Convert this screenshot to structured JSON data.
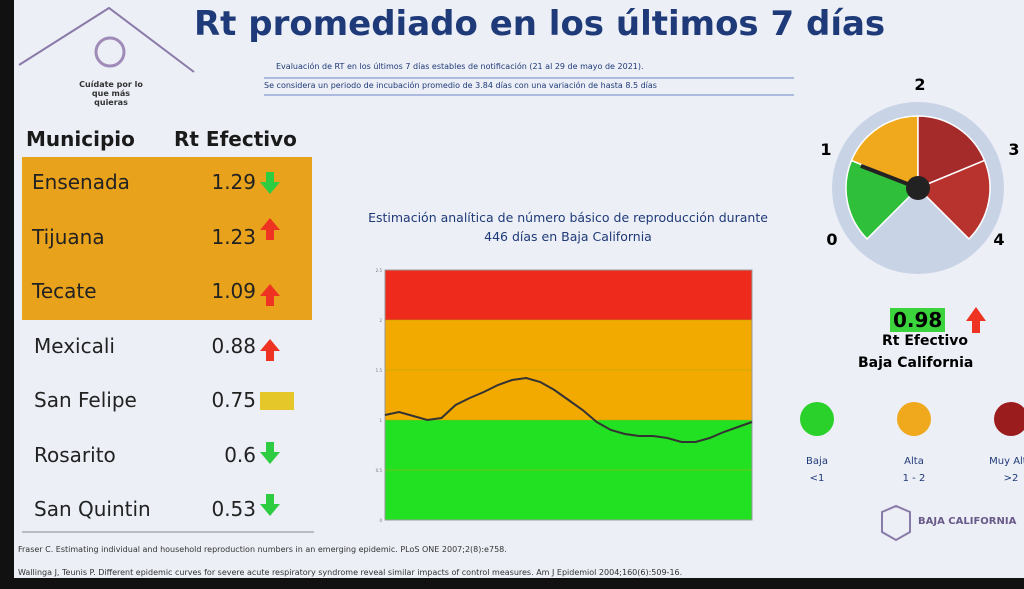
{
  "header": {
    "title": "Rt promediado en los últimos 7 días",
    "subtitle_1": "Evaluación de RT en los últimos 7 días estables de notificación (21 al 29 de mayo de 2021).",
    "subtitle_2": "Se considera un periodo de incubación promedio de 3.84 días con una variación de hasta 8.5 días",
    "logo_text": "Cuídate por lo que más quieras"
  },
  "table": {
    "columns": [
      "Municipio",
      "Rt Efectivo"
    ],
    "rows": [
      [
        "Ensenada",
        "1.29"
      ],
      [
        "Tijuana",
        "1.23"
      ],
      [
        "Tecate",
        "1.09"
      ],
      [
        "Mexicali",
        "0.88"
      ],
      [
        "San Felipe",
        "0.75"
      ],
      [
        "Rosarito",
        "0.6"
      ],
      [
        "San Quintin",
        "0.53"
      ]
    ]
  },
  "chart_data": {
    "type": "line",
    "title": "Estimación analítica de número básico de reproducción durante 446 días en Baja California",
    "ylim": [
      0,
      2.5
    ],
    "yticks": [
      0,
      0.5,
      1,
      1.5,
      2,
      2.5
    ],
    "bands": [
      {
        "from": 0,
        "to": 1,
        "color": "#22e022"
      },
      {
        "from": 1,
        "to": 2,
        "color": "#f2a900"
      },
      {
        "from": 2,
        "to": 2.5,
        "color": "#ee2a1c"
      }
    ],
    "color": "#333333",
    "values": [
      1.05,
      1.08,
      1.04,
      1.0,
      1.02,
      1.15,
      1.22,
      1.28,
      1.35,
      1.4,
      1.42,
      1.38,
      1.3,
      1.2,
      1.1,
      0.98,
      0.9,
      0.86,
      0.84,
      0.84,
      0.82,
      0.78,
      0.78,
      0.82,
      0.88,
      0.93,
      0.98
    ]
  },
  "gauge": {
    "value": 0.98,
    "ticks": [
      0,
      1,
      2,
      3,
      4
    ],
    "zones": [
      {
        "from": 0,
        "to": 1,
        "color": "#2fbf3a"
      },
      {
        "from": 1,
        "to": 2,
        "color": "#f0a81c"
      },
      {
        "from": 2,
        "to": 3,
        "color": "#a52a2a"
      },
      {
        "from": 3,
        "to": 4,
        "color": "#b8322e"
      }
    ],
    "label": "Rt Efectivo",
    "region": "Baja California"
  },
  "legend": [
    {
      "name": "Baja",
      "range": "<1",
      "color": "#2bd12b"
    },
    {
      "name": "Alta",
      "range": "1 - 2",
      "color": "#f0a81c"
    },
    {
      "name": "Muy Alta",
      "range": ">2",
      "color": "#9b1c1c"
    }
  ],
  "brand": "BAJA CALIFORNIA",
  "references": [
    "Fraser C. Estimating individual and household reproduction numbers in an emerging epidemic. PLoS ONE 2007;2(8):e758.",
    "Wallinga J, Teunis P. Different epidemic curves for severe acute respiratory syndrome reveal similar impacts of control measures. Am J Epidemiol 2004;160(6):509-16."
  ]
}
